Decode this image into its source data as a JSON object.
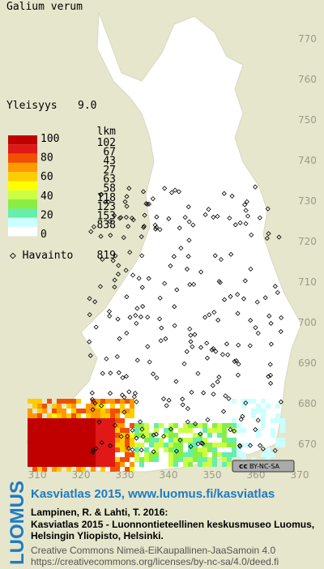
{
  "title": "Galium verum",
  "frequency": {
    "label": "Yleisyys",
    "value": "9.0"
  },
  "legend": {
    "scale": [
      "100",
      "80",
      "60",
      "40",
      "20",
      "0"
    ],
    "count_header": "lkm",
    "counts": [
      102,
      67,
      43,
      27,
      63,
      58,
      118,
      123,
      153,
      838
    ]
  },
  "observations": {
    "label": "Havainto",
    "value": 819
  },
  "grid": {
    "y_labels": [
      "770",
      "760",
      "750",
      "740",
      "730",
      "720",
      "710",
      "700",
      "690",
      "680",
      "670"
    ],
    "x_labels": [
      "310",
      "320",
      "330",
      "340",
      "350",
      "360",
      "370"
    ]
  },
  "license_badge": "BY-NC-SA",
  "footer": {
    "brand": "LUOMUS",
    "heading": "Kasviatlas 2015, www.luomus.fi/kasviatlas",
    "citation": [
      "Lampinen, R. & Lahti, T. 2016:",
      "Kasviatlas 2015 - Luonnontieteellinen keskusmuseo Luomus,",
      "Helsingin Yliopisto, Helsinki."
    ],
    "license": [
      "Creative Commons Nimeä-EiKaupallinen-JaaSamoin 4.0",
      "https://creativecommons.org/licenses/by-nc-sa/4.0/deed.fi"
    ]
  }
}
